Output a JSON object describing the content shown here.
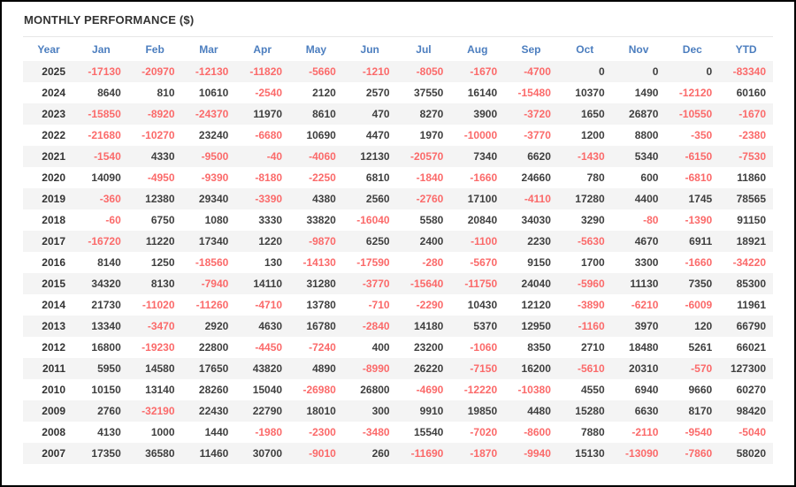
{
  "title": "MONTHLY PERFORMANCE ($)",
  "colors": {
    "header_blue": "#4c7ebf",
    "negative_red": "#fb6a6a",
    "positive_dark": "#3f3f3f",
    "stripe_gray": "#f4f4f4",
    "frame_black": "#000000",
    "divider_gray": "#e7e7e7"
  },
  "chart_data": {
    "type": "table",
    "title": "MONTHLY PERFORMANCE ($)",
    "columns": [
      "Year",
      "Jan",
      "Feb",
      "Mar",
      "Apr",
      "May",
      "Jun",
      "Jul",
      "Aug",
      "Sep",
      "Oct",
      "Nov",
      "Dec",
      "YTD"
    ],
    "rows": [
      {
        "year": "2025",
        "values": [
          -17130,
          -20970,
          -12130,
          -11820,
          -5660,
          -1210,
          -8050,
          -1670,
          -4700,
          0,
          0,
          0,
          -83340
        ]
      },
      {
        "year": "2024",
        "values": [
          8640,
          810,
          10610,
          -2540,
          2120,
          2570,
          37550,
          16140,
          -15480,
          10370,
          1490,
          -12120,
          60160
        ]
      },
      {
        "year": "2023",
        "values": [
          -15850,
          -8920,
          -24370,
          11970,
          8610,
          470,
          8270,
          3900,
          -3720,
          1650,
          26870,
          -10550,
          -1670
        ]
      },
      {
        "year": "2022",
        "values": [
          -21680,
          -10270,
          23240,
          -6680,
          10690,
          4470,
          1970,
          -10000,
          -3770,
          1200,
          8800,
          -350,
          -2380
        ]
      },
      {
        "year": "2021",
        "values": [
          -1540,
          4330,
          -9500,
          -40,
          -4060,
          12130,
          -20570,
          7340,
          6620,
          -1430,
          5340,
          -6150,
          -7530
        ]
      },
      {
        "year": "2020",
        "values": [
          14090,
          -4950,
          -9390,
          -8180,
          -2250,
          6810,
          -1840,
          -1660,
          24660,
          780,
          600,
          -6810,
          11860
        ]
      },
      {
        "year": "2019",
        "values": [
          -360,
          12380,
          29340,
          -3390,
          4380,
          2560,
          -2760,
          17100,
          -4110,
          17280,
          4400,
          1745,
          78565
        ]
      },
      {
        "year": "2018",
        "values": [
          -60,
          6750,
          1080,
          3330,
          33820,
          -16040,
          5580,
          20840,
          34030,
          3290,
          -80,
          -1390,
          91150
        ]
      },
      {
        "year": "2017",
        "values": [
          -16720,
          11220,
          17340,
          1220,
          -9870,
          6250,
          2400,
          -1100,
          2230,
          -5630,
          4670,
          6911,
          18921
        ]
      },
      {
        "year": "2016",
        "values": [
          8140,
          1250,
          -18560,
          130,
          -14130,
          -17590,
          -280,
          -5670,
          9150,
          1700,
          3300,
          -1660,
          -34220
        ]
      },
      {
        "year": "2015",
        "values": [
          34320,
          8130,
          -7940,
          14110,
          31280,
          -3770,
          -15640,
          -11750,
          24040,
          -5960,
          11130,
          7350,
          85300
        ]
      },
      {
        "year": "2014",
        "values": [
          21730,
          -11020,
          -11260,
          -4710,
          13780,
          -710,
          -2290,
          10430,
          12120,
          -3890,
          -6210,
          -6009,
          11961
        ]
      },
      {
        "year": "2013",
        "values": [
          13340,
          -3470,
          2920,
          4630,
          16780,
          -2840,
          14180,
          5370,
          12950,
          -1160,
          3970,
          120,
          66790
        ]
      },
      {
        "year": "2012",
        "values": [
          16800,
          -19230,
          22800,
          -4450,
          -7240,
          400,
          23200,
          -1060,
          8350,
          2710,
          18480,
          5261,
          66021
        ]
      },
      {
        "year": "2011",
        "values": [
          5950,
          14580,
          17650,
          43820,
          4890,
          -8990,
          26220,
          -7150,
          16200,
          -5610,
          20310,
          -570,
          127300
        ]
      },
      {
        "year": "2010",
        "values": [
          10150,
          13140,
          28260,
          15040,
          -26980,
          26800,
          -4690,
          -12220,
          -10380,
          4550,
          6940,
          9660,
          60270
        ]
      },
      {
        "year": "2009",
        "values": [
          2760,
          -32190,
          22430,
          22790,
          18010,
          300,
          9910,
          19850,
          4480,
          15280,
          6630,
          8170,
          98420
        ]
      },
      {
        "year": "2008",
        "values": [
          4130,
          1000,
          1440,
          -1980,
          -2300,
          -3480,
          15540,
          -7020,
          -8600,
          7880,
          -2110,
          -9540,
          -5040
        ]
      },
      {
        "year": "2007",
        "values": [
          17350,
          36580,
          11460,
          30700,
          -9010,
          260,
          -11690,
          -1870,
          -9940,
          15130,
          -13090,
          -7860,
          58020
        ]
      }
    ]
  }
}
